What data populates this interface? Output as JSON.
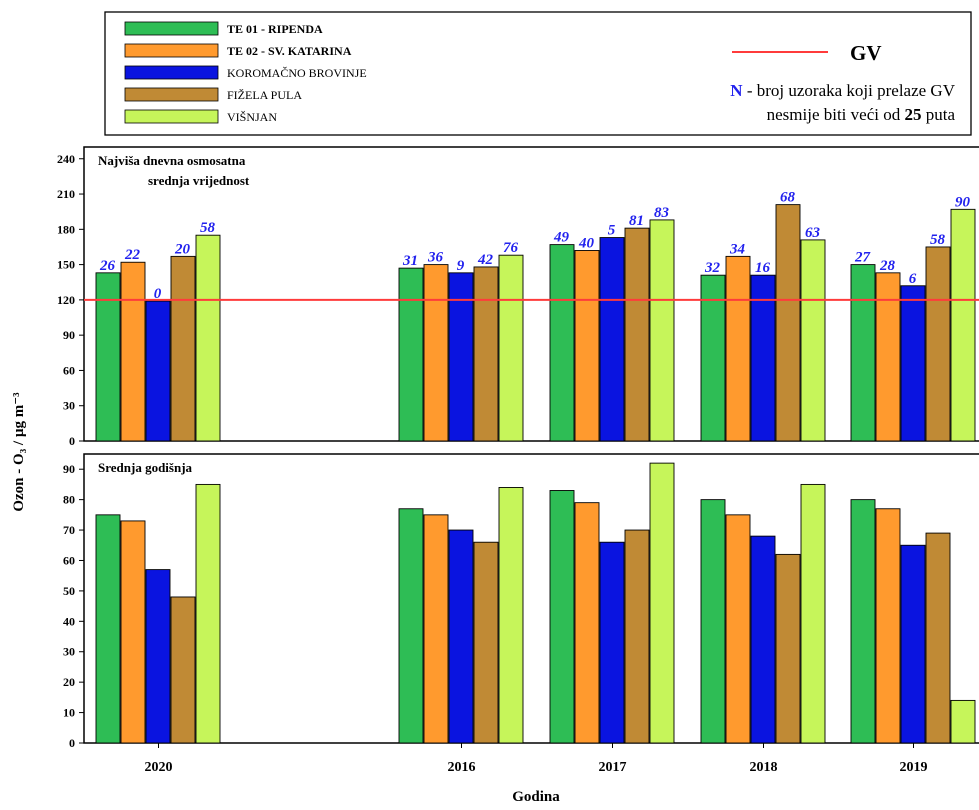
{
  "legend": {
    "entries": [
      {
        "label": "TE 01 - RIPENDA",
        "bold": true
      },
      {
        "label": "TE 02 - SV. KATARINA",
        "bold": true
      },
      {
        "label": "KOROMAČNO BROVINJE",
        "bold": false
      },
      {
        "label": "FIŽELA PULA",
        "bold": false
      },
      {
        "label": "VIŠNJAN",
        "bold": false
      }
    ],
    "gv_label": "GV",
    "note_n": "N",
    "note_line1_rest": " - broj uzoraka koji prelaze GV",
    "note_line2_prefix": "nesmije biti veći od ",
    "note_line2_bold": "25",
    "note_line2_suffix": " puta"
  },
  "colors": {
    "series": [
      "#2ebd55",
      "#ff9a2e",
      "#0a14e0",
      "#c08a35",
      "#c6f55a"
    ],
    "gv_line": "#ff3b3b",
    "exceed_label": "#2222ee",
    "frame": "#000000"
  },
  "chart_data": [
    {
      "type": "bar",
      "title": "Najviša dnevna osmosatna",
      "subtitle": "srednja vrijednost",
      "categories": [
        "2020",
        "2016",
        "2017",
        "2018",
        "2019"
      ],
      "ylim": [
        0,
        250
      ],
      "yticks": [
        "0",
        "30",
        "60",
        "90",
        "120",
        "150",
        "180",
        "210",
        "240"
      ],
      "reference_line": {
        "name": "GV",
        "value": 120
      },
      "series": [
        {
          "name": "TE 01 - RIPENDA",
          "values": [
            143,
            147,
            167,
            141,
            150
          ],
          "labels": [
            "26",
            "31",
            "49",
            "32",
            "27"
          ]
        },
        {
          "name": "TE 02 - SV. KATARINA",
          "values": [
            152,
            150,
            162,
            157,
            143
          ],
          "labels": [
            "22",
            "36",
            "40",
            "34",
            "28"
          ]
        },
        {
          "name": "KOROMAČNO BROVINJE",
          "values": [
            119,
            143,
            173,
            141,
            132
          ],
          "labels": [
            "0",
            "9",
            "5",
            "16",
            "6"
          ]
        },
        {
          "name": "FIŽELA PULA",
          "values": [
            157,
            148,
            181,
            201,
            165
          ],
          "labels": [
            "20",
            "42",
            "81",
            "68",
            "58"
          ]
        },
        {
          "name": "VIŠNJAN",
          "values": [
            175,
            158,
            188,
            171,
            197
          ],
          "labels": [
            "58",
            "76",
            "83",
            "63",
            "90"
          ]
        }
      ]
    },
    {
      "type": "bar",
      "title": "Srednja godišnja",
      "categories": [
        "2020",
        "2016",
        "2017",
        "2018",
        "2019"
      ],
      "xlabel": "Godina",
      "ylim": [
        0,
        95
      ],
      "yticks": [
        "0",
        "10",
        "20",
        "30",
        "40",
        "50",
        "60",
        "70",
        "80",
        "90"
      ],
      "series": [
        {
          "name": "TE 01 - RIPENDA",
          "values": [
            75,
            77,
            83,
            80,
            80
          ]
        },
        {
          "name": "TE 02 - SV. KATARINA",
          "values": [
            73,
            75,
            79,
            75,
            77
          ]
        },
        {
          "name": "KOROMAČNO BROVINJE",
          "values": [
            57,
            70,
            66,
            68,
            65
          ]
        },
        {
          "name": "FIŽELA PULA",
          "values": [
            48,
            66,
            70,
            62,
            69
          ]
        },
        {
          "name": "VIŠNJAN",
          "values": [
            85,
            84,
            92,
            85,
            14
          ]
        }
      ]
    }
  ],
  "ylabel": "Ozon - O₃ / µg m⁻³"
}
